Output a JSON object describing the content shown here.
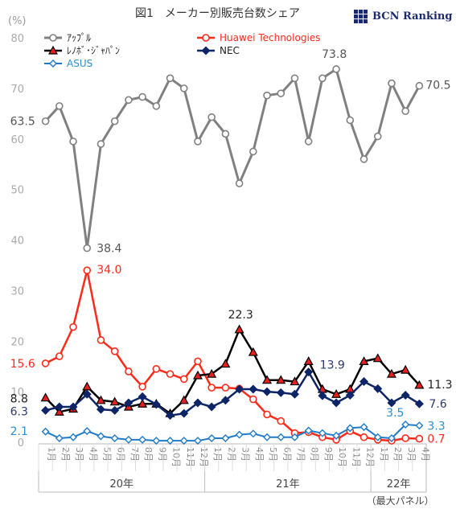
{
  "header": {
    "title": "図1　メーカー別販売台数シェア",
    "logo_text": "BCN Ranking"
  },
  "colors": {
    "apple": "#808080",
    "huawei": "#ff2a1a",
    "lenovo": "#000000",
    "nec": "#0d2566",
    "asus": "#1f7bc8",
    "huawei_label": "#ff2a1a",
    "nec_label": "#2b3a73",
    "asus_label": "#2a8fd0"
  },
  "chart_data": {
    "type": "line",
    "ylabel": "(%)",
    "ylim": [
      0,
      80
    ],
    "yticks": [
      "0",
      "10",
      "20",
      "30",
      "40",
      "50",
      "60",
      "70",
      "80"
    ],
    "x": [
      "1月",
      "2月",
      "3月",
      "4月",
      "5月",
      "6月",
      "7月",
      "8月",
      "9月",
      "10月",
      "11月",
      "12月",
      "1月",
      "2月",
      "3月",
      "4月",
      "5月",
      "6月",
      "7月",
      "8月",
      "9月",
      "10月",
      "11月",
      "12月",
      "1月",
      "2月",
      "3月",
      "4月"
    ],
    "years": [
      "20年",
      "21年",
      "22年"
    ],
    "year_note": "（最大パネル）",
    "grid": false,
    "legend_placement": "top-left",
    "series": [
      {
        "name": "ｱｯﾌﾟﾙ",
        "key": "apple",
        "values": [
          63.5,
          66.5,
          59.5,
          38.4,
          59.0,
          63.5,
          67.7,
          68.3,
          66.5,
          72.0,
          70.0,
          59.5,
          64.3,
          61.0,
          51.2,
          57.5,
          68.6,
          69.0,
          72.0,
          59.5,
          72.0,
          73.8,
          63.7,
          56.0,
          60.5,
          71.0,
          65.5,
          70.5
        ]
      },
      {
        "name": "Huawei Technologies",
        "key": "huawei",
        "values": [
          15.6,
          17.0,
          22.8,
          34.0,
          20.2,
          18.0,
          14.0,
          11.0,
          14.5,
          13.5,
          12.5,
          16.0,
          10.8,
          10.8,
          10.6,
          8.5,
          5.5,
          4.2,
          1.8,
          2.0,
          1.0,
          0.5,
          2.2,
          1.0,
          0.5,
          0.3,
          0.8,
          0.7
        ]
      },
      {
        "name": "ﾚﾉﾎﾞ･ｼﾞｬﾊﾟﾝ",
        "key": "lenovo",
        "values": [
          8.8,
          6.0,
          6.6,
          11.0,
          8.3,
          8.0,
          7.0,
          7.6,
          7.6,
          5.7,
          8.3,
          13.2,
          13.5,
          15.5,
          22.3,
          17.8,
          12.3,
          12.3,
          12.0,
          16.0,
          10.5,
          9.5,
          10.5,
          16.0,
          16.6,
          13.5,
          14.3,
          11.3
        ]
      },
      {
        "name": "NEC",
        "key": "nec",
        "values": [
          6.3,
          7.0,
          7.0,
          9.5,
          6.5,
          6.3,
          7.8,
          9.0,
          7.5,
          5.3,
          5.7,
          7.8,
          7.0,
          8.3,
          10.5,
          10.5,
          10.0,
          9.8,
          9.5,
          13.9,
          9.2,
          7.8,
          9.3,
          12.0,
          10.6,
          7.8,
          9.3,
          7.6
        ]
      },
      {
        "name": "ASUS",
        "key": "asus",
        "values": [
          2.1,
          0.8,
          1.0,
          2.2,
          1.2,
          0.8,
          0.5,
          0.5,
          0.3,
          0.3,
          0.3,
          0.3,
          0.8,
          0.8,
          1.5,
          1.7,
          1.0,
          1.0,
          1.0,
          2.3,
          1.8,
          1.3,
          2.8,
          3.0,
          1.0,
          0.8,
          3.5,
          3.3
        ]
      }
    ],
    "annotations": [
      {
        "text": "63.5",
        "series": "apple",
        "index": 0
      },
      {
        "text": "38.4",
        "series": "apple",
        "index": 3
      },
      {
        "text": "73.8",
        "series": "apple",
        "index": 21
      },
      {
        "text": "70.5",
        "series": "apple",
        "index": 27
      },
      {
        "text": "34.0",
        "series": "huawei",
        "index": 3
      },
      {
        "text": "15.6",
        "series": "huawei",
        "index": 0
      },
      {
        "text": "0.7",
        "series": "huawei",
        "index": 27
      },
      {
        "text": "22.3",
        "series": "lenovo",
        "index": 14
      },
      {
        "text": "8.8",
        "series": "lenovo",
        "index": 0
      },
      {
        "text": "11.3",
        "series": "lenovo",
        "index": 27
      },
      {
        "text": "13.9",
        "series": "nec",
        "index": 19
      },
      {
        "text": "6.3",
        "series": "nec",
        "index": 0
      },
      {
        "text": "7.6",
        "series": "nec",
        "index": 27
      },
      {
        "text": "2.1",
        "series": "asus",
        "index": 0
      },
      {
        "text": "3.5",
        "series": "asus",
        "index": 26
      },
      {
        "text": "3.3",
        "series": "asus",
        "index": 27
      }
    ]
  }
}
